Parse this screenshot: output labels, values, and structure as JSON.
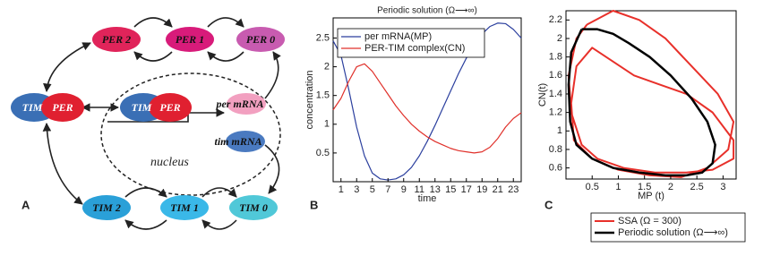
{
  "panel_labels": [
    "A",
    "B",
    "C"
  ],
  "diagram": {
    "nodes": [
      "PER 2",
      "PER 1",
      "PER 0",
      "TIM",
      "PER",
      "TIM",
      "PER",
      "per mRNA",
      "tim mRNA",
      "TIM 2",
      "TIM 1",
      "TIM 0"
    ],
    "nucleus_label": "nucleus"
  },
  "chart_data": [
    {
      "type": "line",
      "title": "Periodic solution (Ω⟶∞)",
      "x_label": "time",
      "y_label": "concentration",
      "x": [
        0,
        1,
        2,
        3,
        4,
        5,
        6,
        7,
        8,
        9,
        10,
        11,
        12,
        13,
        14,
        15,
        16,
        17,
        18,
        19,
        20,
        21,
        22,
        23,
        24
      ],
      "series": [
        {
          "name": "per mRNA(MP)",
          "color": "#2b3f9e",
          "values": [
            2.45,
            2.2,
            1.6,
            0.95,
            0.45,
            0.15,
            0.05,
            0.03,
            0.05,
            0.12,
            0.25,
            0.45,
            0.7,
            0.98,
            1.28,
            1.58,
            1.88,
            2.15,
            2.38,
            2.57,
            2.7,
            2.76,
            2.75,
            2.65,
            2.5
          ]
        },
        {
          "name": "PER-TIM complex(CN)",
          "color": "#e0302a",
          "values": [
            1.25,
            1.45,
            1.75,
            2.0,
            2.05,
            1.92,
            1.72,
            1.52,
            1.32,
            1.15,
            1.0,
            0.88,
            0.78,
            0.7,
            0.64,
            0.58,
            0.54,
            0.52,
            0.5,
            0.52,
            0.6,
            0.75,
            0.95,
            1.1,
            1.2
          ]
        }
      ],
      "xlim": [
        0,
        24
      ],
      "ylim": [
        0,
        2.85
      ],
      "xticks": [
        1,
        3,
        5,
        7,
        9,
        11,
        13,
        15,
        17,
        19,
        21,
        23
      ],
      "yticks": [
        0.5,
        1,
        1.5,
        2,
        2.5
      ],
      "grid": false,
      "legend": "upper left"
    },
    {
      "type": "line",
      "x_label": "MP (t)",
      "y_label": "CN(t)",
      "series": [
        {
          "name": "SSA (Ω = 300)",
          "color": "#e8302a",
          "width": 2,
          "x": [
            0.4,
            0.9,
            1.4,
            1.9,
            2.4,
            2.9,
            3.2,
            3.1,
            2.7,
            2.2,
            1.6,
            1.0,
            0.5,
            0.15,
            0.1,
            0.2,
            0.5,
            0.9,
            1.3,
            1.8,
            2.3,
            2.8,
            3.2,
            3.2,
            2.8,
            2.3,
            1.7,
            1.1,
            0.6,
            0.3,
            0.1,
            0.05,
            0.2,
            0.4
          ],
          "values": [
            2.15,
            2.3,
            2.2,
            2.0,
            1.7,
            1.4,
            1.1,
            0.8,
            0.6,
            0.5,
            0.52,
            0.58,
            0.7,
            0.9,
            1.3,
            1.7,
            1.9,
            1.75,
            1.6,
            1.5,
            1.4,
            1.2,
            0.9,
            0.7,
            0.58,
            0.55,
            0.55,
            0.6,
            0.7,
            0.85,
            1.2,
            1.6,
            2.0,
            2.15
          ]
        },
        {
          "name": "Periodic solution (Ω⟶∞)",
          "color": "#000000",
          "width": 2.5,
          "x": [
            0.3,
            0.6,
            0.9,
            1.2,
            1.6,
            2.0,
            2.4,
            2.7,
            2.85,
            2.8,
            2.6,
            2.3,
            1.9,
            1.4,
            0.9,
            0.5,
            0.2,
            0.08,
            0.05,
            0.1,
            0.3
          ],
          "values": [
            2.1,
            2.1,
            2.05,
            1.95,
            1.8,
            1.6,
            1.35,
            1.1,
            0.85,
            0.65,
            0.55,
            0.52,
            0.52,
            0.55,
            0.6,
            0.7,
            0.85,
            1.1,
            1.5,
            1.85,
            2.1
          ]
        }
      ],
      "xlim": [
        0,
        3.25
      ],
      "ylim": [
        0.48,
        2.3
      ],
      "xticks": [
        0.5,
        1,
        1.5,
        2,
        2.5,
        3
      ],
      "yticks": [
        0.6,
        0.8,
        1,
        1.2,
        1.4,
        1.6,
        1.8,
        2,
        2.2
      ],
      "grid": false,
      "legend": "below"
    }
  ]
}
